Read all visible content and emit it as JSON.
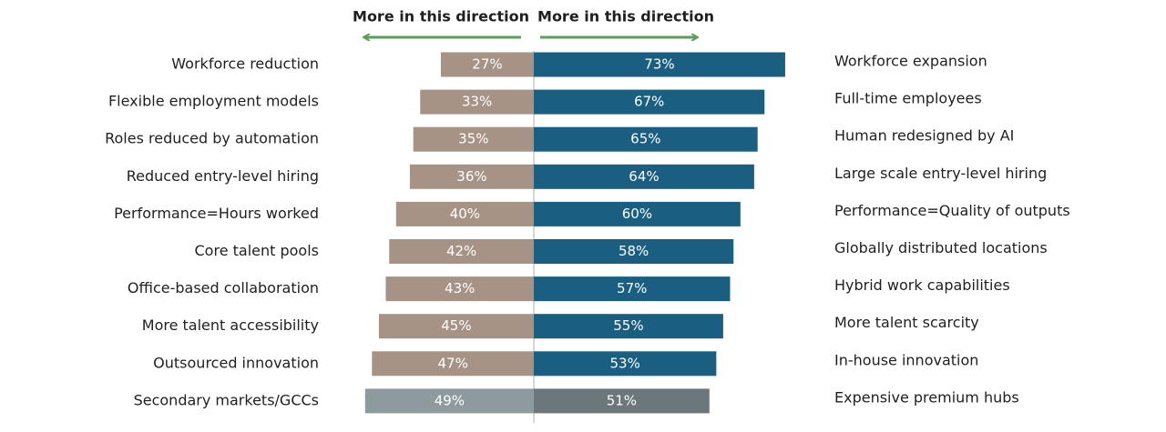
{
  "chart_data": {
    "type": "diverging_bar",
    "headers": [
      "More in this direction",
      "More in this direction"
    ],
    "left": {
      "labels": [
        "Workforce reduction",
        "Flexible employment models",
        "Roles reduced by automation",
        "Reduced entry-level hiring",
        "Performance=Hours worked",
        "Core talent pools",
        "Office-based collaboration",
        "More talent accessibility",
        "Outsourced innovation",
        "Secondary markets/GCCs"
      ],
      "values": [
        27,
        33,
        35,
        36,
        40,
        42,
        43,
        45,
        47,
        49
      ],
      "value_labels": [
        "27%",
        "33%",
        "35%",
        "36%",
        "40%",
        "42%",
        "43%",
        "45%",
        "47%",
        "49%"
      ],
      "colors": [
        "#a69385",
        "#a69385",
        "#a69385",
        "#a69385",
        "#a69385",
        "#a69385",
        "#a69385",
        "#a69385",
        "#a69385",
        "#8d9a9e"
      ]
    },
    "right": {
      "labels": [
        "Workforce expansion",
        "Full-time employees",
        "Human redesigned by AI",
        "Large scale entry-level hiring",
        "Performance=Quality of outputs",
        "Globally distributed locations",
        "Hybrid work capabilities",
        "More talent scarcity",
        "In-house innovation",
        "Expensive premium hubs"
      ],
      "values": [
        73,
        67,
        65,
        64,
        60,
        58,
        57,
        55,
        53,
        51
      ],
      "value_labels": [
        "73%",
        "67%",
        "65%",
        "64%",
        "60%",
        "58%",
        "57%",
        "55%",
        "53%",
        "51%"
      ],
      "colors": [
        "#1a5f82",
        "#1a5f82",
        "#1a5f82",
        "#1a5f82",
        "#1a5f82",
        "#1a5f82",
        "#1a5f82",
        "#1a5f82",
        "#1a5f82",
        "#6b777b"
      ]
    }
  }
}
